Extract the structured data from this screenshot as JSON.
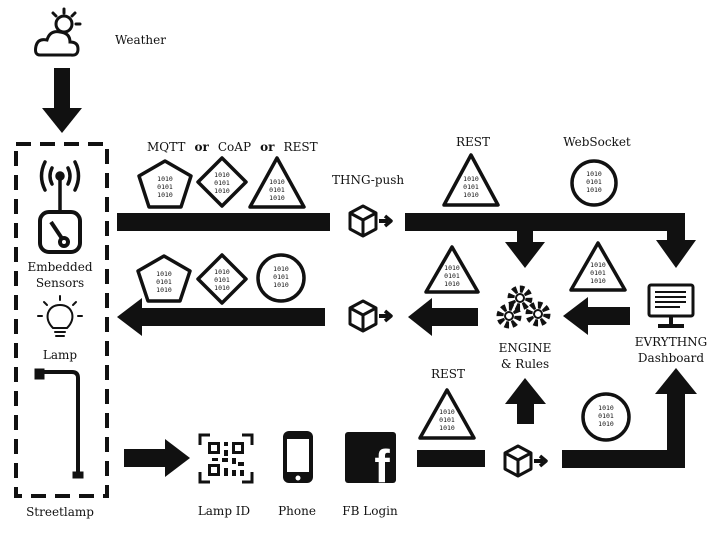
{
  "labels": {
    "weather": "Weather",
    "embedded_line1": "Embedded",
    "embedded_line2": "Sensors",
    "lamp": "Lamp",
    "streetlamp": "Streetlamp",
    "lamp_id": "Lamp ID",
    "phone": "Phone",
    "fb_login": "FB Login",
    "thng_push": "THNG-push",
    "engine_line1": "ENGINE",
    "engine_line2": "& Rules",
    "dashboard_line1": "EVRYTHNG",
    "dashboard_line2": "Dashboard",
    "facebook_glyph": "f"
  },
  "protocols": {
    "mqtt": "MQTT",
    "or": "or",
    "coap": "CoAP",
    "rest": "REST",
    "websocket": "WebSocket"
  },
  "binary": {
    "line1": "1010",
    "line2": "0101",
    "line3": "1010"
  }
}
